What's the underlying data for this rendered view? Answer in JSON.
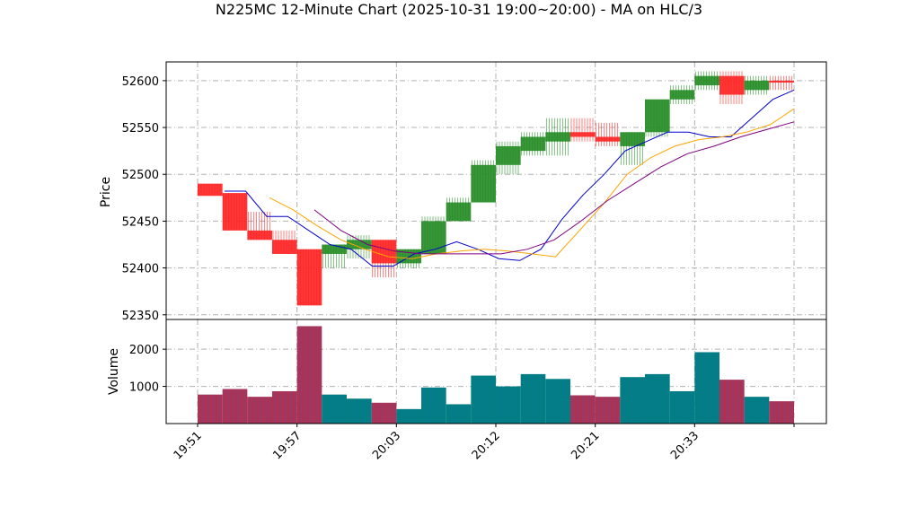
{
  "chart_data": {
    "type": "candlestick-volume",
    "title": "N225MC 12-Minute Chart (2025-10-31 19:00~20:00) - MA on HLC/3",
    "xlabel": "",
    "price_ylabel": "Price",
    "volume_ylabel": "Volume",
    "price_ylim": [
      52345,
      52620
    ],
    "price_ticks": [
      52350,
      52400,
      52450,
      52500,
      52550,
      52600
    ],
    "volume_ylim": [
      0,
      2800
    ],
    "volume_ticks": [
      1000,
      2000
    ],
    "x_tick_labels": [
      "19:51",
      "19:57",
      "20:03",
      "20:12",
      "20:21",
      "20:33"
    ],
    "grid": true,
    "colors": {
      "up": "#228b22",
      "down": "#ff2020",
      "volume_up": "#008080",
      "volume_down": "#b03050",
      "ma_short": "#0000cd",
      "ma_mid": "#ffa500",
      "ma_long": "#800080"
    },
    "ohlcv": [
      {
        "o": 52490,
        "h": 52490,
        "l": 52477,
        "c": 52477,
        "v": 780
      },
      {
        "o": 52480,
        "h": 52480,
        "l": 52440,
        "c": 52440,
        "v": 930
      },
      {
        "o": 52440,
        "h": 52460,
        "l": 52430,
        "c": 52430,
        "v": 720
      },
      {
        "o": 52430,
        "h": 52440,
        "l": 52415,
        "c": 52415,
        "v": 870
      },
      {
        "o": 52420,
        "h": 52420,
        "l": 52360,
        "c": 52360,
        "v": 2620
      },
      {
        "o": 52415,
        "h": 52425,
        "l": 52400,
        "c": 52425,
        "v": 780
      },
      {
        "o": 52420,
        "h": 52435,
        "l": 52410,
        "c": 52430,
        "v": 670
      },
      {
        "o": 52430,
        "h": 52430,
        "l": 52390,
        "c": 52405,
        "v": 560
      },
      {
        "o": 52405,
        "h": 52420,
        "l": 52400,
        "c": 52420,
        "v": 390
      },
      {
        "o": 52415,
        "h": 52455,
        "l": 52415,
        "c": 52450,
        "v": 970
      },
      {
        "o": 52450,
        "h": 52475,
        "l": 52450,
        "c": 52470,
        "v": 520
      },
      {
        "o": 52470,
        "h": 52515,
        "l": 52470,
        "c": 52510,
        "v": 1290
      },
      {
        "o": 52510,
        "h": 52535,
        "l": 52500,
        "c": 52530,
        "v": 1000
      },
      {
        "o": 52525,
        "h": 52545,
        "l": 52520,
        "c": 52540,
        "v": 1330
      },
      {
        "o": 52535,
        "h": 52560,
        "l": 52520,
        "c": 52545,
        "v": 1200
      },
      {
        "o": 52545,
        "h": 52560,
        "l": 52535,
        "c": 52540,
        "v": 760
      },
      {
        "o": 52540,
        "h": 52555,
        "l": 52530,
        "c": 52535,
        "v": 720
      },
      {
        "o": 52530,
        "h": 52545,
        "l": 52510,
        "c": 52545,
        "v": 1250
      },
      {
        "o": 52545,
        "h": 52580,
        "l": 52540,
        "c": 52580,
        "v": 1330
      },
      {
        "o": 52580,
        "h": 52595,
        "l": 52575,
        "c": 52590,
        "v": 870
      },
      {
        "o": 52595,
        "h": 52610,
        "l": 52590,
        "c": 52605,
        "v": 1920
      },
      {
        "o": 52605,
        "h": 52610,
        "l": 52575,
        "c": 52585,
        "v": 1180
      },
      {
        "o": 52590,
        "h": 52605,
        "l": 52585,
        "c": 52600,
        "v": 720
      },
      {
        "o": 52600,
        "h": 52605,
        "l": 52590,
        "c": 52598,
        "v": 600
      }
    ],
    "ma_short": [
      52482,
      52482,
      52455,
      52455,
      52440,
      52425,
      52420,
      52402,
      52402,
      52415,
      52420,
      52428,
      52420,
      52410,
      52408,
      52420,
      52452,
      52478,
      52500,
      52525,
      52535,
      52545,
      52545,
      52540,
      52540,
      52560,
      52580,
      52590
    ],
    "ma_mid": [
      52475,
      52462,
      52445,
      52430,
      52420,
      52412,
      52410,
      52415,
      52418,
      52420,
      52418,
      52415,
      52412,
      52440,
      52468,
      52500,
      52518,
      52530,
      52537,
      52540,
      52545,
      52553,
      52570
    ],
    "ma_long": [
      52462,
      52440,
      52425,
      52418,
      52415,
      52415,
      52415,
      52415,
      52420,
      52430,
      52450,
      52472,
      52490,
      52508,
      52522,
      52530,
      52540,
      52548,
      52556
    ]
  }
}
